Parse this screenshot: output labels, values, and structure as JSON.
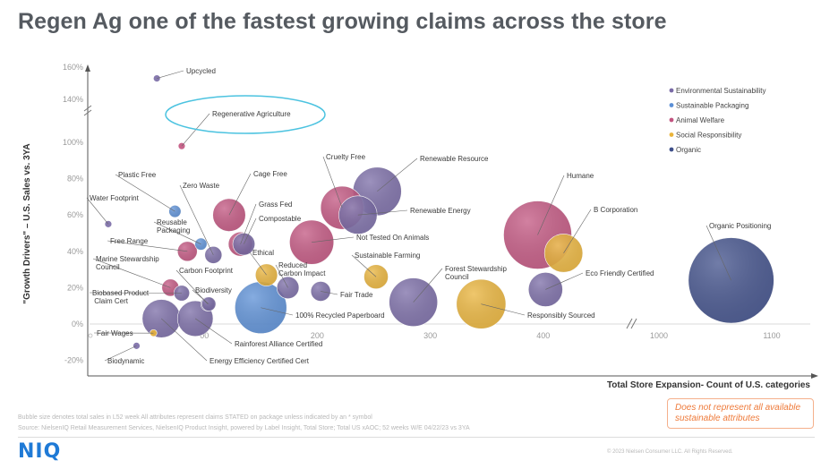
{
  "title": "Regen Ag one of the fastest growing claims across the store",
  "note": "Does not represent all available sustainable attributes",
  "footnote1": "Bubble size denotes total sales in L52 week All attributes represent claims STATED on package unless indicated by an * symbol",
  "footnote2": "Source: NielsenIQ Retail Measurement Services, NielsenIQ Product Insight, powered by Label Insight, Total Store; Total US xAOC; 52 weeks W/E 04/22/23 vs 3YA",
  "logo": "NIQ",
  "copyright": "© 2023 Nielsen Consumer LLC. All Rights Reserved.",
  "colors": {
    "Environmental Sustainability": "#7a6ba6",
    "Sustainable Packaging": "#5b8fd6",
    "Animal Welfare": "#c25480",
    "Social Responsibility": "#eab43a",
    "Organic": "#3f4f8a",
    "highlight": "#4cc3e0"
  },
  "chart_data": {
    "type": "scatter",
    "xlabel": "Total Store Expansion- Count of U.S. categories",
    "ylabel": "\"Growth Drivers\" – U.S. Sales vs. 3YA",
    "x_ticks": [
      "200",
      "300",
      "400",
      "1000",
      "1100"
    ],
    "y_ticks": [
      "-20%",
      "0%",
      "20%",
      "40%",
      "60%",
      "80%",
      "100%",
      "140%",
      "160%"
    ],
    "x_partial_tick": "00",
    "legend_position": "top-right",
    "legend": [
      "Environmental Sustainability",
      "Sustainable Packaging",
      "Animal Welfare",
      "Social Responsibility",
      "Organic"
    ],
    "highlighted": "Regenerative Agriculture",
    "points": [
      {
        "label": "Upcycled",
        "category": "Environmental Sustainability",
        "x": 58,
        "y": 153,
        "size": 1
      },
      {
        "label": "Regenerative Agriculture",
        "category": "Animal Welfare",
        "x": 80,
        "y": 111,
        "size": 1
      },
      {
        "label": "Plastic Free",
        "category": "Sustainable Packaging",
        "x": 74,
        "y": 62,
        "size": 3
      },
      {
        "label": "Water Footprint",
        "category": "Environmental Sustainability",
        "x": 15,
        "y": 55,
        "size": 1
      },
      {
        "label": "Zero Waste",
        "category": "Environmental Sustainability",
        "x": 108,
        "y": 38,
        "size": 6
      },
      {
        "label": "Cage Free",
        "category": "Animal Welfare",
        "x": 122,
        "y": 60,
        "size": 22
      },
      {
        "label": "Grass Fed",
        "category": "Animal Welfare",
        "x": 132,
        "y": 44,
        "size": 12
      },
      {
        "label": "Compostable",
        "category": "Environmental Sustainability",
        "x": 135,
        "y": 44,
        "size": 10
      },
      {
        "label": "Reusable Packaging",
        "category": "Sustainable Packaging",
        "x": 97,
        "y": 44,
        "size": 3
      },
      {
        "label": "Free Range",
        "category": "Animal Welfare",
        "x": 85,
        "y": 40,
        "size": 8
      },
      {
        "label": "Marine Stewardship Council",
        "category": "Animal Welfare",
        "x": 70,
        "y": 20,
        "size": 6
      },
      {
        "label": "Biobased Product Claim Cert",
        "category": "Environmental Sustainability",
        "x": 80,
        "y": 17,
        "size": 5
      },
      {
        "label": "Carbon Footprint",
        "category": "Environmental Sustainability",
        "x": 103,
        "y": 11,
        "size": 4
      },
      {
        "label": "Biodiversity",
        "category": "Environmental Sustainability",
        "x": 104,
        "y": 11,
        "size": 4
      },
      {
        "label": "Ethical",
        "category": "Social Responsibility",
        "x": 155,
        "y": 27,
        "size": 10
      },
      {
        "label": "Reduced Carbon Impact",
        "category": "Environmental Sustainability",
        "x": 174,
        "y": 20,
        "size": 10
      },
      {
        "label": "100% Recycled Paperboard",
        "category": "Sustainable Packaging",
        "x": 150,
        "y": 9,
        "size": 55
      },
      {
        "label": "Cruelty Free",
        "category": "Animal Welfare",
        "x": 222,
        "y": 64,
        "size": 38
      },
      {
        "label": "Renewable Resource",
        "category": "Environmental Sustainability",
        "x": 253,
        "y": 73,
        "size": 48
      },
      {
        "label": "Renewable Energy",
        "category": "Environmental Sustainability",
        "x": 236,
        "y": 60,
        "size": 30
      },
      {
        "label": "Not Tested On Animals",
        "category": "Animal Welfare",
        "x": 195,
        "y": 45,
        "size": 40
      },
      {
        "label": "Sustainable Farming",
        "category": "Social Responsibility",
        "x": 252,
        "y": 26,
        "size": 12
      },
      {
        "label": "Fair Trade",
        "category": "Environmental Sustainability",
        "x": 203,
        "y": 18,
        "size": 8
      },
      {
        "label": "Forest Stewardship Council",
        "category": "Environmental Sustainability",
        "x": 285,
        "y": 12,
        "size": 48
      },
      {
        "label": "Humane",
        "category": "Animal Welfare",
        "x": 395,
        "y": 49,
        "size": 95
      },
      {
        "label": "B Corporation",
        "category": "Social Responsibility",
        "x": 418,
        "y": 39,
        "size": 30
      },
      {
        "label": "Responsibly Sourced",
        "category": "Social Responsibility",
        "x": 345,
        "y": 11,
        "size": 50
      },
      {
        "label": "Eco Friendly Certified",
        "category": "Environmental Sustainability",
        "x": 402,
        "y": 19,
        "size": 24
      },
      {
        "label": "Organic Positioning",
        "category": "Organic",
        "x": 1064,
        "y": 24,
        "size": 150
      },
      {
        "label": "Fair Wages",
        "category": "Social Responsibility",
        "x": 55,
        "y": -5,
        "size": 1
      },
      {
        "label": "Biodynamic",
        "category": "Environmental Sustainability",
        "x": 40,
        "y": -12,
        "size": 1
      },
      {
        "label": "Energy Efficiency Certified Cert",
        "category": "Environmental Sustainability",
        "x": 62,
        "y": 3,
        "size": 30
      },
      {
        "label": "Rainforest Alliance Certified",
        "category": "Environmental Sustainability",
        "x": 92,
        "y": 3,
        "size": 26
      }
    ]
  }
}
